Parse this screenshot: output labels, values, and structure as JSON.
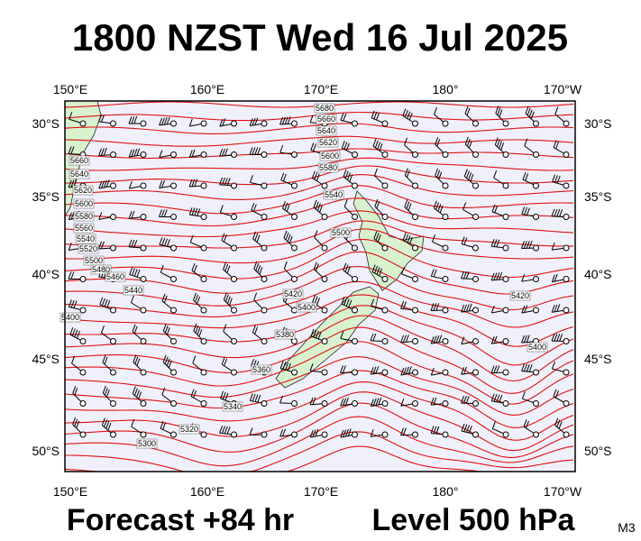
{
  "title": "1800 NZST Wed 16 Jul 2025",
  "longitude_labels": [
    "150°E",
    "160°E",
    "170°E",
    "180°",
    "170°W"
  ],
  "latitude_labels": [
    "30°S",
    "35°S",
    "40°S",
    "45°S",
    "50°S"
  ],
  "contour_labels": [
    "5680",
    "5660",
    "5640",
    "5620",
    "5600",
    "5580",
    "5540",
    "5500",
    "5420",
    "5400",
    "5380",
    "5360",
    "5340",
    "5320",
    "5300",
    "5660",
    "5640",
    "5620",
    "5600",
    "5580",
    "5560",
    "5540",
    "5520",
    "5500",
    "5480",
    "5460",
    "5440",
    "5400",
    "5420",
    "5400"
  ],
  "footer": {
    "forecast": "Forecast +84 hr",
    "level": "Level 500 hPa",
    "model": "M3"
  }
}
